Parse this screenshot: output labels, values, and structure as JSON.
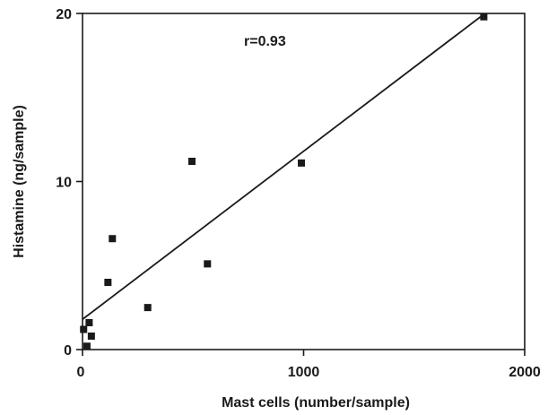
{
  "chart_data": {
    "type": "scatter",
    "title": "",
    "xlabel": "Mast cells (number/sample)",
    "ylabel": "Histamine (ng/sample)",
    "xlim": [
      0,
      2000
    ],
    "ylim": [
      0,
      20
    ],
    "x_ticks": [
      0,
      1000,
      2000
    ],
    "y_ticks": [
      0,
      10,
      20
    ],
    "grid": false,
    "annotation": "r=0.93",
    "points": [
      {
        "x": 5,
        "y": 1.2
      },
      {
        "x": 20,
        "y": 0.2
      },
      {
        "x": 30,
        "y": 1.6
      },
      {
        "x": 40,
        "y": 0.8
      },
      {
        "x": 115,
        "y": 4.0
      },
      {
        "x": 135,
        "y": 6.6
      },
      {
        "x": 295,
        "y": 2.5
      },
      {
        "x": 495,
        "y": 11.2
      },
      {
        "x": 565,
        "y": 5.1
      },
      {
        "x": 990,
        "y": 11.1
      },
      {
        "x": 1815,
        "y": 19.8
      }
    ],
    "fit_line": {
      "x": [
        0,
        1800
      ],
      "y": [
        1.8,
        19.8
      ]
    }
  }
}
